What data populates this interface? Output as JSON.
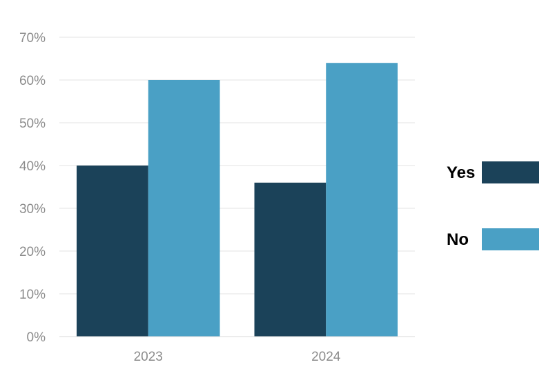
{
  "chart_data": {
    "type": "bar",
    "categories": [
      "2023",
      "2024"
    ],
    "series": [
      {
        "name": "Yes",
        "values": [
          40,
          36
        ],
        "color": "#1b4259"
      },
      {
        "name": "No",
        "values": [
          60,
          64
        ],
        "color": "#4aa0c5"
      }
    ],
    "y_ticks": [
      "0%",
      "10%",
      "20%",
      "30%",
      "40%",
      "50%",
      "60%",
      "70%"
    ],
    "ylim": [
      0,
      70
    ],
    "y_unit": "%",
    "grid": true,
    "legend_position": "right",
    "title": "",
    "xlabel": "",
    "ylabel": ""
  }
}
